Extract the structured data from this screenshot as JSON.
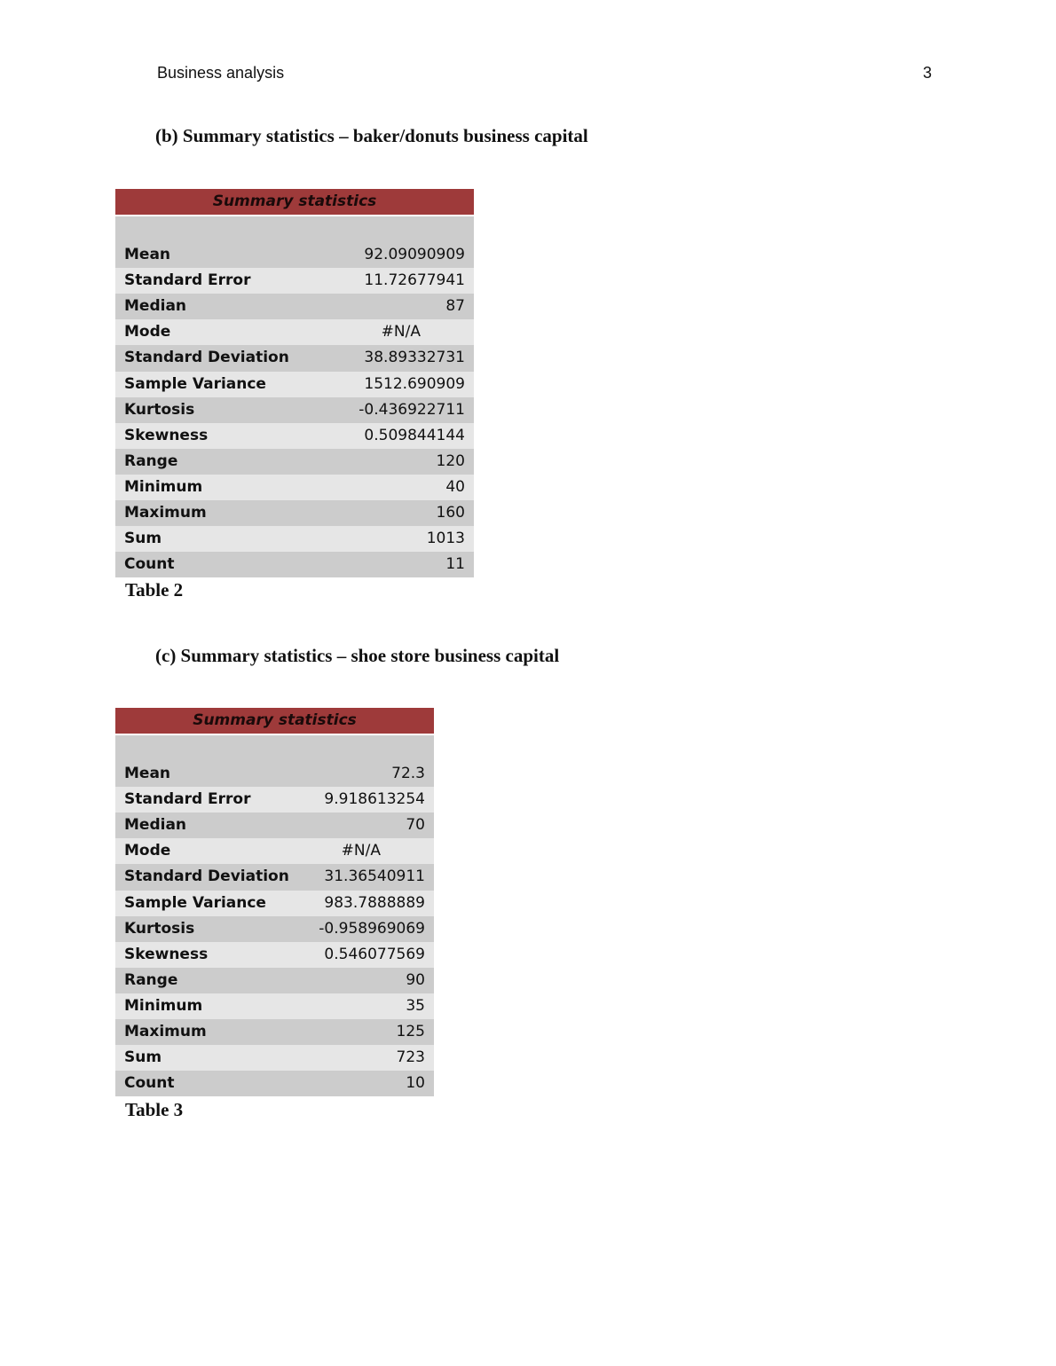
{
  "header": {
    "title": "Business analysis",
    "page_number": "3"
  },
  "sections": [
    {
      "heading": "(b) Summary statistics – baker/donuts business capital",
      "table_title": "Summary statistics",
      "rows": [
        {
          "label": "Mean",
          "value": "92.09090909"
        },
        {
          "label": "Standard Error",
          "value": "11.72677941"
        },
        {
          "label": "Median",
          "value": "87"
        },
        {
          "label": "Mode",
          "value": "#N/A"
        },
        {
          "label": "Standard Deviation",
          "value": "38.89332731"
        },
        {
          "label": "Sample Variance",
          "value": "1512.690909"
        },
        {
          "label": "Kurtosis",
          "value": "-0.436922711"
        },
        {
          "label": "Skewness",
          "value": "0.509844144"
        },
        {
          "label": "Range",
          "value": "120"
        },
        {
          "label": "Minimum",
          "value": "40"
        },
        {
          "label": "Maximum",
          "value": "160"
        },
        {
          "label": "Sum",
          "value": "1013"
        },
        {
          "label": "Count",
          "value": "11"
        }
      ],
      "caption": "Table 2"
    },
    {
      "heading": "(c)  Summary statistics – shoe store business capital",
      "table_title": "Summary statistics",
      "rows": [
        {
          "label": "Mean",
          "value": "72.3"
        },
        {
          "label": "Standard Error",
          "value": "9.918613254"
        },
        {
          "label": "Median",
          "value": "70"
        },
        {
          "label": "Mode",
          "value": "#N/A"
        },
        {
          "label": "Standard Deviation",
          "value": "31.36540911"
        },
        {
          "label": "Sample Variance",
          "value": "983.7888889"
        },
        {
          "label": "Kurtosis",
          "value": "-0.958969069"
        },
        {
          "label": "Skewness",
          "value": "0.546077569"
        },
        {
          "label": "Range",
          "value": "90"
        },
        {
          "label": "Minimum",
          "value": "35"
        },
        {
          "label": "Maximum",
          "value": "125"
        },
        {
          "label": "Sum",
          "value": "723"
        },
        {
          "label": "Count",
          "value": "10"
        }
      ],
      "caption": "Table 3"
    }
  ],
  "colors": {
    "table_header": "#9e3a3a",
    "row_light": "#e6e6e6",
    "row_dark": "#cccccc"
  }
}
